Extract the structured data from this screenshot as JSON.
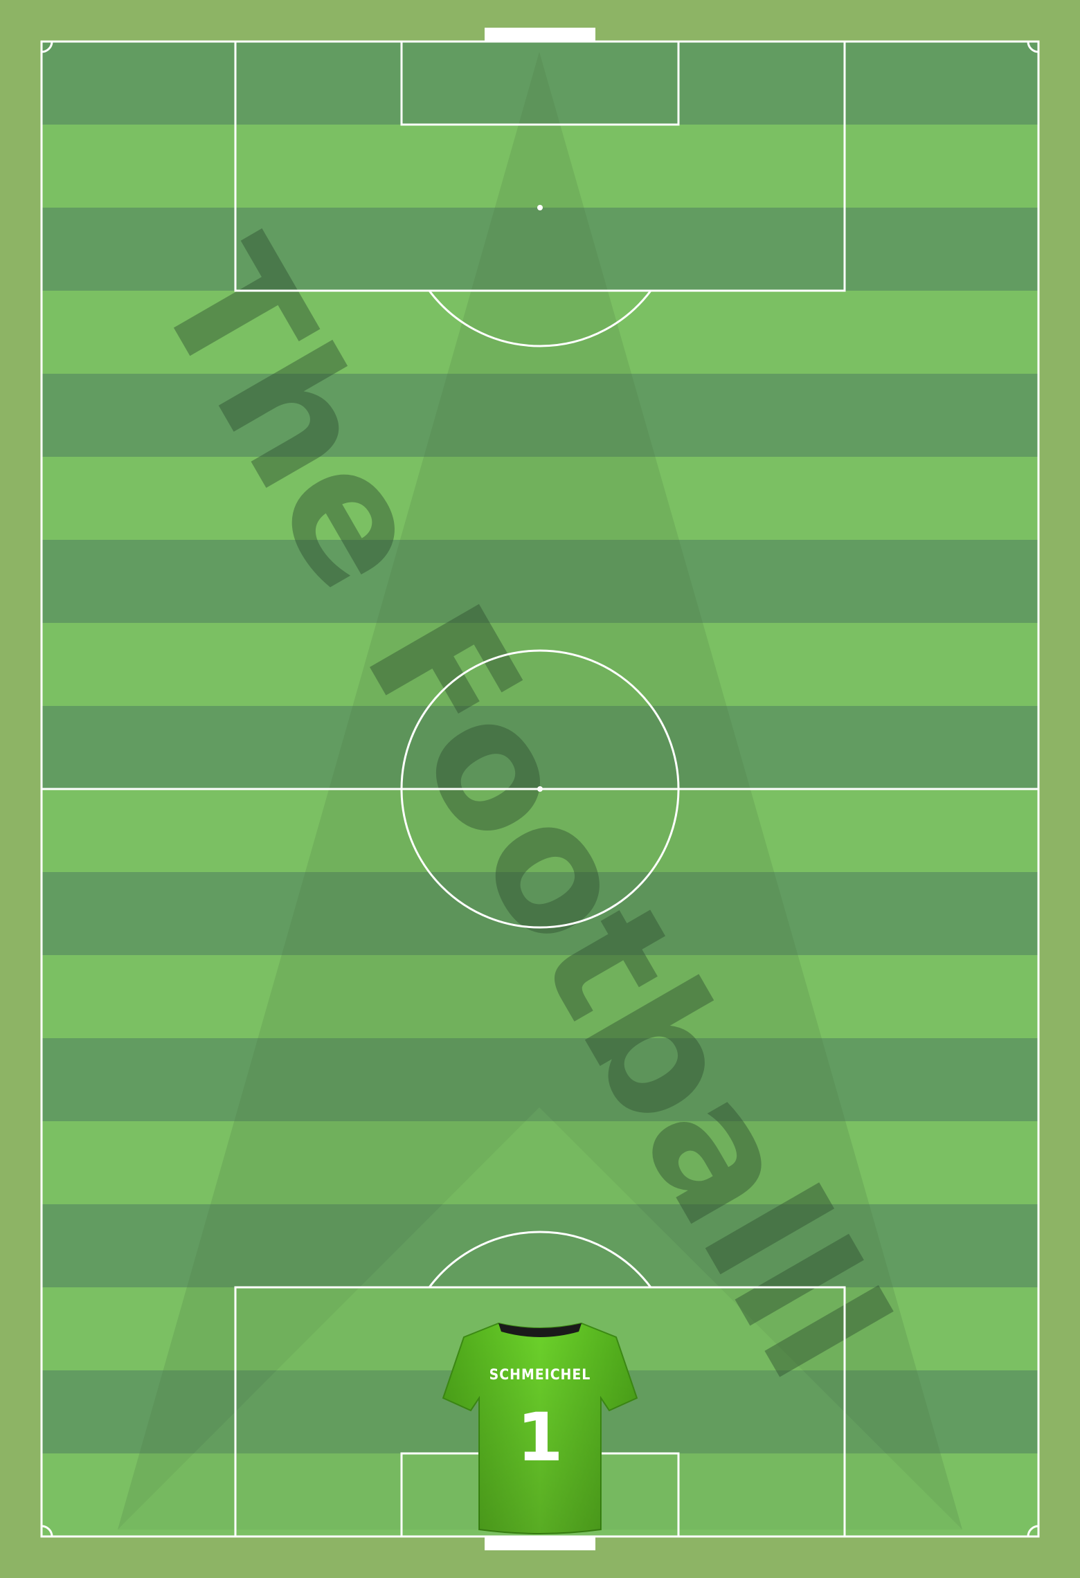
{
  "pitch": {
    "colors": {
      "surround": "#8db465",
      "stripe_light": "#7bc063",
      "stripe_dark": "#629c61",
      "lines": "#ffffff"
    },
    "stripe_count": 18
  },
  "watermark": {
    "text": "The Footballl",
    "color": "#3a5f3a"
  },
  "player": {
    "name": "SCHMEICHEL",
    "number": "1",
    "shirt_color": "#5ec224",
    "collar_color": "#1a1a1a"
  }
}
